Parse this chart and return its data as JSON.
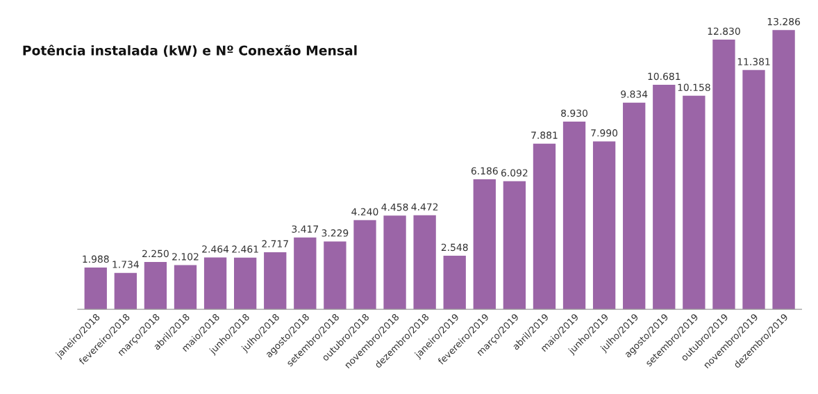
{
  "chart_data": {
    "type": "bar",
    "title": "Potência instalada (kW) e Nº Conexão Mensal",
    "categories": [
      "janeiro/2018",
      "fevereiro/2018",
      "março/2018",
      "abril/2018",
      "maio/2018",
      "junho/2018",
      "julho/2018",
      "agosto/2018",
      "setembro/2018",
      "outubro/2018",
      "novembro/2018",
      "dezembro/2018",
      "janeiro/2019",
      "fevereiro/2019",
      "março/2019",
      "abril/2019",
      "maio/2019",
      "junho/2019",
      "julho/2019",
      "agosto/2019",
      "setembro/2019",
      "outubro/2019",
      "novembro/2019",
      "dezembro/2019"
    ],
    "values": [
      1988,
      1734,
      2250,
      2102,
      2464,
      2461,
      2717,
      3417,
      3229,
      4240,
      4458,
      4472,
      2548,
      6186,
      6092,
      7881,
      8930,
      7990,
      9834,
      10681,
      10158,
      12830,
      11381,
      13286
    ],
    "value_labels": [
      "1.988",
      "1.734",
      "2.250",
      "2.102",
      "2.464",
      "2.461",
      "2.717",
      "3.417",
      "3.229",
      "4.240",
      "4.458",
      "4.472",
      "2.548",
      "6.186",
      "6.092",
      "7.881",
      "8.930",
      "7.990",
      "9.834",
      "10.681",
      "10.158",
      "12.830",
      "11.381",
      "13.286"
    ],
    "color": "#9b65a7",
    "tick_labels": "x",
    "grid": false,
    "legend": false
  }
}
